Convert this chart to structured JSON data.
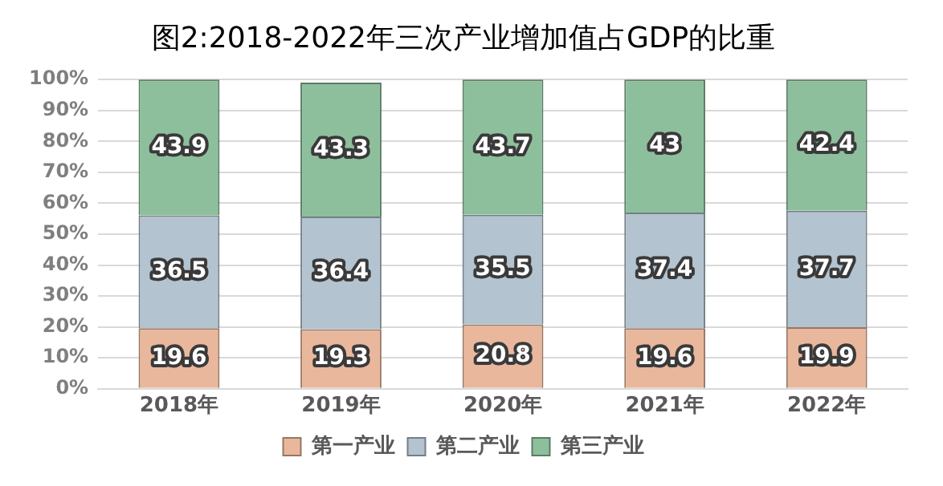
{
  "chart_data": {
    "type": "bar",
    "title": "图2:2018-2022年三次产业增加值占GDP的比重",
    "categories": [
      "2018年",
      "2019年",
      "2020年",
      "2021年",
      "2022年"
    ],
    "stacked": true,
    "series": [
      {
        "name": "第一产业",
        "color": "#e9b79c",
        "values": [
          19.6,
          19.3,
          20.8,
          19.6,
          19.9
        ]
      },
      {
        "name": "第二产业",
        "color": "#b3c3cf",
        "values": [
          36.5,
          36.4,
          35.5,
          37.4,
          37.7
        ]
      },
      {
        "name": "第三产业",
        "color": "#8dbf9c",
        "values": [
          43.9,
          43.3,
          43.7,
          43,
          42.4
        ]
      }
    ],
    "ylim": [
      0,
      100
    ],
    "yticks": [
      {
        "value": 0,
        "label": "0%"
      },
      {
        "value": 10,
        "label": "10%"
      },
      {
        "value": 20,
        "label": "20%"
      },
      {
        "value": 30,
        "label": "30%"
      },
      {
        "value": 40,
        "label": "40%"
      },
      {
        "value": 50,
        "label": "50%"
      },
      {
        "value": 60,
        "label": "60%"
      },
      {
        "value": 70,
        "label": "70%"
      },
      {
        "value": 80,
        "label": "80%"
      },
      {
        "value": 90,
        "label": "90%"
      },
      {
        "value": 100,
        "label": "100%"
      }
    ],
    "grid": "y",
    "legend": "bottom",
    "data_labels": true
  }
}
